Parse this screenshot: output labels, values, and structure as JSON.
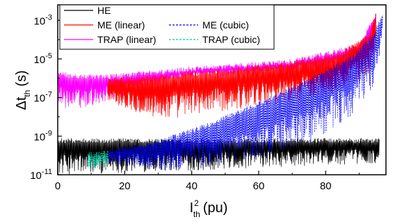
{
  "chart_data": {
    "type": "line",
    "xlabel": "I",
    "xlabel_sup": "2",
    "xlabel_sub": "th",
    "xlabel_unit": "(pu)",
    "ylabel": "Δt",
    "ylabel_sub": "th",
    "ylabel_unit": "(s)",
    "xlim": [
      0,
      98
    ],
    "ylim_log10": [
      -11,
      -2.2
    ],
    "y_scale": "log",
    "x_ticks": [
      0,
      20,
      40,
      60,
      80
    ],
    "x_tick_labels": [
      "0",
      "20",
      "40",
      "60",
      "80"
    ],
    "y_ticks_log10": [
      -11,
      -9,
      -7,
      -5,
      -3
    ],
    "y_tick_labels": [
      {
        "base": "10",
        "exp": "-11"
      },
      {
        "base": "10",
        "exp": "-9"
      },
      {
        "base": "10",
        "exp": "-7"
      },
      {
        "base": "10",
        "exp": "-5"
      },
      {
        "base": "10",
        "exp": "-3"
      }
    ],
    "legend_position": "top-left",
    "series": [
      {
        "name": "HE",
        "color": "#000000",
        "dash": "solid",
        "x_range": [
          0,
          96
        ],
        "band_log10": {
          "x": [
            0,
            40,
            96
          ],
          "upper": [
            -9.1,
            -9.1,
            -9.1
          ],
          "lower": [
            -11.0,
            -10.8,
            -10.4
          ]
        }
      },
      {
        "name": "ME (linear)",
        "color": "#ff0000",
        "dash": "solid",
        "x_range": [
          15,
          95
        ],
        "band_log10": {
          "x": [
            15,
            30,
            50,
            70,
            85,
            93,
            95
          ],
          "upper": [
            -6.0,
            -5.8,
            -5.5,
            -5.1,
            -4.6,
            -3.6,
            -2.6
          ],
          "lower": [
            -7.2,
            -8.2,
            -7.7,
            -7.2,
            -6.7,
            -5.9,
            -4.2
          ]
        }
      },
      {
        "name": "ME (cubic)",
        "color": "#0000ff",
        "dash": "dash",
        "x_range": [
          15,
          97
        ],
        "band_log10": {
          "x": [
            15,
            30,
            45,
            60,
            75,
            88,
            94,
            97
          ],
          "upper": [
            -9.7,
            -9.2,
            -8.3,
            -7.2,
            -6.0,
            -4.8,
            -3.7,
            -2.6
          ],
          "lower": [
            -10.4,
            -10.8,
            -10.6,
            -10.2,
            -9.4,
            -8.0,
            -6.6,
            -4.2
          ]
        }
      },
      {
        "name": "TRAP (linear)",
        "color": "#ff00ff",
        "dash": "solid",
        "x_range": [
          0,
          95
        ],
        "band_log10": {
          "x": [
            0,
            4,
            15,
            40,
            70,
            90,
            95
          ],
          "upper": [
            -5.5,
            -5.8,
            -5.8,
            -5.4,
            -5.0,
            -4.2,
            -2.6
          ],
          "lower": [
            -7.4,
            -7.7,
            -7.2,
            -6.0,
            -5.8,
            -5.6,
            -3.8
          ]
        }
      },
      {
        "name": "TRAP (cubic)",
        "color": "#00c8a0",
        "dash": "dash",
        "x_range": [
          9,
          15
        ],
        "band_log10": {
          "x": [
            9,
            12,
            15
          ],
          "upper": [
            -9.8,
            -9.8,
            -9.7
          ],
          "lower": [
            -10.8,
            -10.8,
            -10.6
          ]
        }
      }
    ]
  }
}
